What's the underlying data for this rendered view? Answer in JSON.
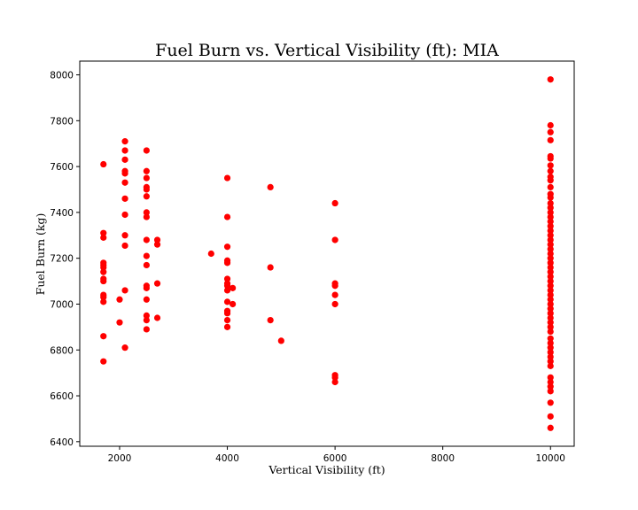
{
  "chart_data": {
    "type": "scatter",
    "title": "Fuel Burn vs. Vertical Visibility (ft): MIA",
    "xlabel": "Vertical Visibility (ft)",
    "ylabel": "Fuel Burn (kg)",
    "xlim": [
      1260,
      10440
    ],
    "ylim": [
      6380,
      8060
    ],
    "xticks": [
      2000,
      4000,
      6000,
      8000,
      10000
    ],
    "yticks": [
      6400,
      6600,
      6800,
      7000,
      7200,
      7400,
      7600,
      7800,
      8000
    ],
    "grid": false,
    "legend": "none",
    "color": "#ff0000",
    "points": [
      [
        1700,
        7610
      ],
      [
        1700,
        7310
      ],
      [
        1700,
        7290
      ],
      [
        1700,
        7180
      ],
      [
        1700,
        7170
      ],
      [
        1700,
        7160
      ],
      [
        1700,
        7140
      ],
      [
        1700,
        7110
      ],
      [
        1700,
        7100
      ],
      [
        1700,
        7040
      ],
      [
        1700,
        7030
      ],
      [
        1700,
        7010
      ],
      [
        1700,
        6860
      ],
      [
        1700,
        6750
      ],
      [
        2000,
        7020
      ],
      [
        2000,
        6920
      ],
      [
        2100,
        7710
      ],
      [
        2100,
        7670
      ],
      [
        2100,
        7630
      ],
      [
        2100,
        7580
      ],
      [
        2100,
        7570
      ],
      [
        2100,
        7530
      ],
      [
        2100,
        7460
      ],
      [
        2100,
        7390
      ],
      [
        2100,
        7300
      ],
      [
        2100,
        7255
      ],
      [
        2100,
        7060
      ],
      [
        2100,
        6810
      ],
      [
        2500,
        7670
      ],
      [
        2500,
        7580
      ],
      [
        2500,
        7550
      ],
      [
        2500,
        7510
      ],
      [
        2500,
        7500
      ],
      [
        2500,
        7470
      ],
      [
        2500,
        7400
      ],
      [
        2500,
        7380
      ],
      [
        2500,
        7280
      ],
      [
        2500,
        7210
      ],
      [
        2500,
        7170
      ],
      [
        2500,
        7080
      ],
      [
        2500,
        7070
      ],
      [
        2500,
        7020
      ],
      [
        2500,
        6950
      ],
      [
        2500,
        6930
      ],
      [
        2500,
        6890
      ],
      [
        2700,
        7280
      ],
      [
        2700,
        7260
      ],
      [
        2700,
        7090
      ],
      [
        2700,
        6940
      ],
      [
        3700,
        7220
      ],
      [
        4000,
        7550
      ],
      [
        4000,
        7380
      ],
      [
        4000,
        7250
      ],
      [
        4000,
        7190
      ],
      [
        4000,
        7180
      ],
      [
        4000,
        7110
      ],
      [
        4000,
        7090
      ],
      [
        4000,
        7080
      ],
      [
        4000,
        7060
      ],
      [
        4000,
        7010
      ],
      [
        4000,
        6970
      ],
      [
        4000,
        6960
      ],
      [
        4000,
        6930
      ],
      [
        4000,
        6900
      ],
      [
        4100,
        7070
      ],
      [
        4100,
        7000
      ],
      [
        4800,
        7510
      ],
      [
        4800,
        7160
      ],
      [
        4800,
        6930
      ],
      [
        5000,
        6840
      ],
      [
        6000,
        7440
      ],
      [
        6000,
        7280
      ],
      [
        6000,
        7090
      ],
      [
        6000,
        7080
      ],
      [
        6000,
        7040
      ],
      [
        6000,
        7000
      ],
      [
        6000,
        6690
      ],
      [
        6000,
        6680
      ],
      [
        6000,
        6660
      ],
      [
        10000,
        7980
      ],
      [
        10000,
        7780
      ],
      [
        10000,
        7750
      ],
      [
        10000,
        7715
      ],
      [
        10000,
        7645
      ],
      [
        10000,
        7635
      ],
      [
        10000,
        7605
      ],
      [
        10000,
        7580
      ],
      [
        10000,
        7555
      ],
      [
        10000,
        7540
      ],
      [
        10000,
        7510
      ],
      [
        10000,
        7480
      ],
      [
        10000,
        7465
      ],
      [
        10000,
        7440
      ],
      [
        10000,
        7420
      ],
      [
        10000,
        7400
      ],
      [
        10000,
        7380
      ],
      [
        10000,
        7360
      ],
      [
        10000,
        7340
      ],
      [
        10000,
        7320
      ],
      [
        10000,
        7300
      ],
      [
        10000,
        7280
      ],
      [
        10000,
        7260
      ],
      [
        10000,
        7240
      ],
      [
        10000,
        7220
      ],
      [
        10000,
        7200
      ],
      [
        10000,
        7180
      ],
      [
        10000,
        7160
      ],
      [
        10000,
        7140
      ],
      [
        10000,
        7120
      ],
      [
        10000,
        7100
      ],
      [
        10000,
        7080
      ],
      [
        10000,
        7060
      ],
      [
        10000,
        7040
      ],
      [
        10000,
        7020
      ],
      [
        10000,
        7000
      ],
      [
        10000,
        6980
      ],
      [
        10000,
        6960
      ],
      [
        10000,
        6940
      ],
      [
        10000,
        6920
      ],
      [
        10000,
        6900
      ],
      [
        10000,
        6880
      ],
      [
        10000,
        6850
      ],
      [
        10000,
        6830
      ],
      [
        10000,
        6810
      ],
      [
        10000,
        6790
      ],
      [
        10000,
        6770
      ],
      [
        10000,
        6750
      ],
      [
        10000,
        6730
      ],
      [
        10000,
        6680
      ],
      [
        10000,
        6660
      ],
      [
        10000,
        6640
      ],
      [
        10000,
        6620
      ],
      [
        10000,
        6570
      ],
      [
        10000,
        6510
      ],
      [
        10000,
        6460
      ]
    ]
  }
}
